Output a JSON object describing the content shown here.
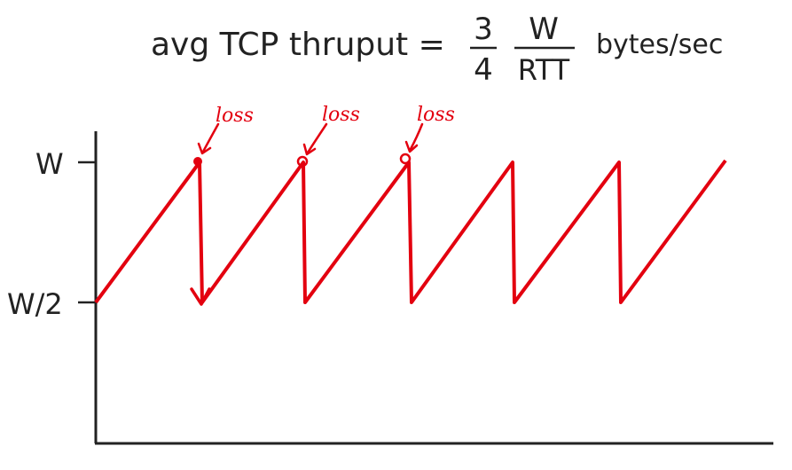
{
  "formula": {
    "prefix": "avg TCP thruput =",
    "numerator_const": "3",
    "denominator_const": "4",
    "numerator_var": "W",
    "denominator_var": "RTT",
    "units": "bytes/sec"
  },
  "axis_labels": {
    "w": "W",
    "w_half": "W/2"
  },
  "annotations": [
    {
      "label": "loss"
    },
    {
      "label": "loss"
    },
    {
      "label": "loss"
    }
  ],
  "colors": {
    "curve": "#e3000f",
    "axis": "#222222",
    "text": "#222222"
  }
}
